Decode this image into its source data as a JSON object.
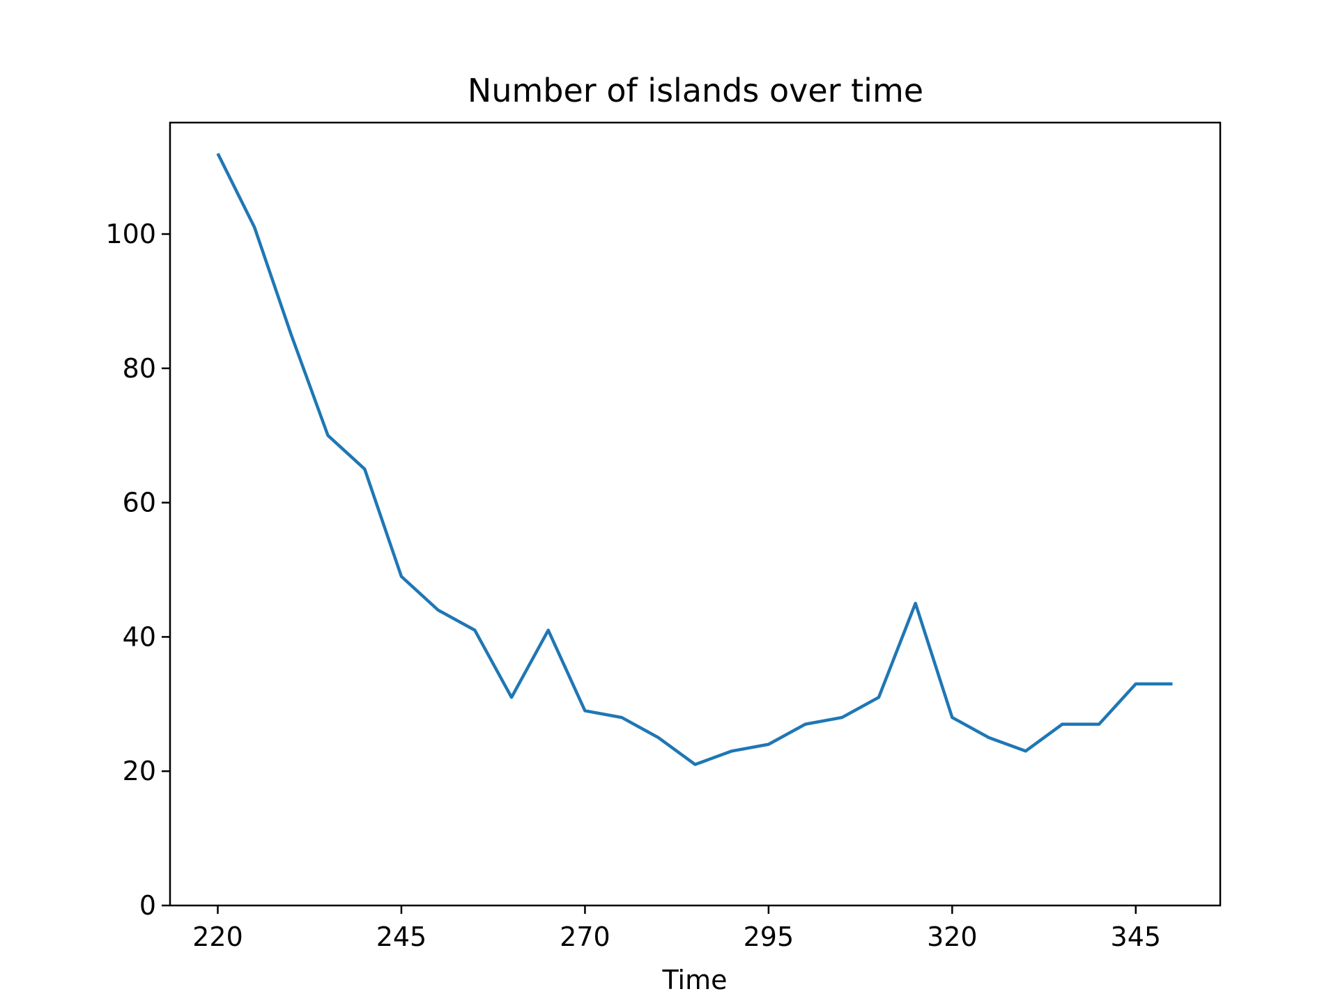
{
  "chart_data": {
    "type": "line",
    "title": "Number of islands over time",
    "xlabel": "Time",
    "ylabel": "",
    "xlim": [
      213.5,
      356.5
    ],
    "ylim": [
      0,
      116.6
    ],
    "xticks": [
      220,
      245,
      270,
      295,
      320,
      345
    ],
    "yticks": [
      0,
      20,
      40,
      60,
      80,
      100
    ],
    "grid": false,
    "series": [
      {
        "color": "#1f77b4",
        "x": [
          220,
          225,
          230,
          235,
          240,
          245,
          250,
          255,
          260,
          265,
          270,
          275,
          280,
          285,
          290,
          295,
          300,
          305,
          310,
          315,
          320,
          325,
          330,
          335,
          340,
          345,
          350
        ],
        "y": [
          112,
          101,
          85,
          70,
          65,
          49,
          44,
          41,
          31,
          41,
          29,
          28,
          25,
          21,
          23,
          24,
          27,
          28,
          31,
          45,
          28,
          25,
          23,
          27,
          27,
          33,
          33
        ]
      }
    ]
  }
}
